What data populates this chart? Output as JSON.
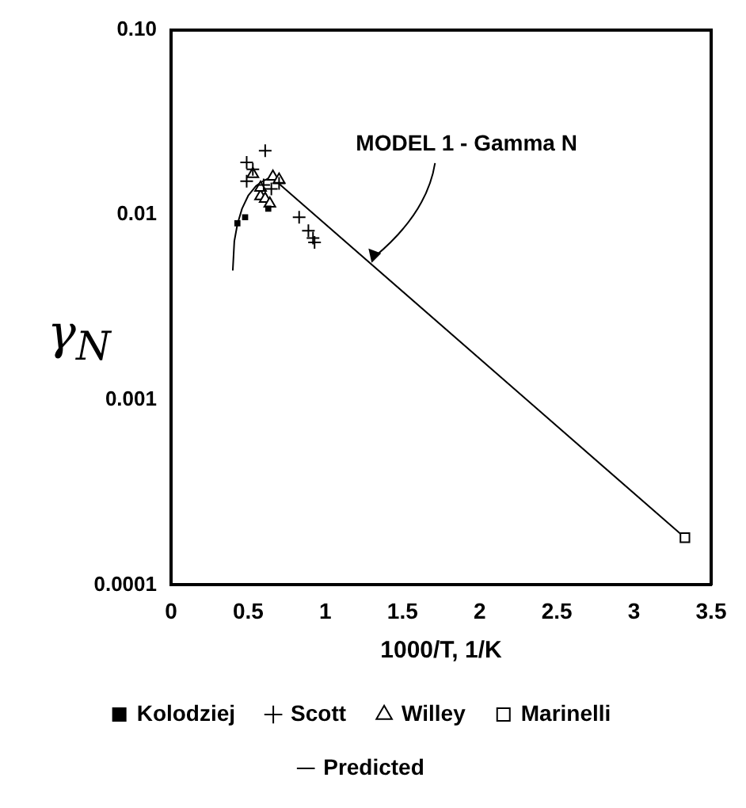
{
  "chart_data": {
    "type": "scatter",
    "xlabel": "1000/T, 1/K",
    "ylabel": "γ$_{N}$",
    "log": "y",
    "grid": false,
    "legend": "bottom",
    "xlim": [
      0,
      3.5
    ],
    "xticks": [
      0,
      0.5,
      1,
      1.5,
      2,
      2.5,
      3,
      3.5
    ],
    "ylim": [
      0.0001,
      0.1
    ],
    "yticks": [
      {
        "value": 0.0001,
        "label": "0.0001"
      },
      {
        "value": 0.001,
        "label": "0.001"
      },
      {
        "value": 0.01,
        "label": "0.01"
      },
      {
        "value": 0.1,
        "label": "0.10"
      }
    ],
    "annotations": [
      {
        "text": "MODEL 1 - Gamma N",
        "x": 1.3,
        "y": 0.0055
      }
    ],
    "series": [
      {
        "name": "Kolodziej",
        "color": "#000000",
        "marker": "square",
        "x": [
          0.43,
          0.48,
          0.63
        ],
        "values": [
          0.009,
          0.0097,
          0.0108
        ]
      },
      {
        "name": "Scott",
        "color": "#000000",
        "marker": "cross",
        "x": [
          0.61,
          0.49,
          0.53,
          0.49,
          0.6,
          0.65,
          0.7,
          0.83,
          0.89,
          0.92,
          0.93
        ],
        "values": [
          0.0222,
          0.0192,
          0.0176,
          0.0152,
          0.0145,
          0.0138,
          0.0148,
          0.0097,
          0.0082,
          0.0075,
          0.0071
        ]
      },
      {
        "name": "Willey",
        "color": "#000000",
        "marker": "triangle",
        "x": [
          0.66,
          0.58,
          0.61,
          0.53,
          0.58,
          0.7,
          0.64
        ],
        "values": [
          0.0161,
          0.0126,
          0.0122,
          0.0166,
          0.014,
          0.0155,
          0.0115
        ]
      },
      {
        "name": "Marinelli",
        "color": "#000000",
        "marker": "square",
        "x": [
          3.33
        ],
        "values": [
          0.00018
        ]
      },
      {
        "name": "Predicted",
        "type": "line",
        "color": "#000000",
        "marker": "none",
        "line_style": "solid",
        "x": [
          0.4,
          0.41,
          0.43,
          0.46,
          0.5,
          0.55,
          0.6,
          0.65,
          3.33
        ],
        "values": [
          0.005,
          0.0072,
          0.0089,
          0.0108,
          0.0127,
          0.0143,
          0.0153,
          0.016,
          0.00018
        ]
      }
    ]
  }
}
